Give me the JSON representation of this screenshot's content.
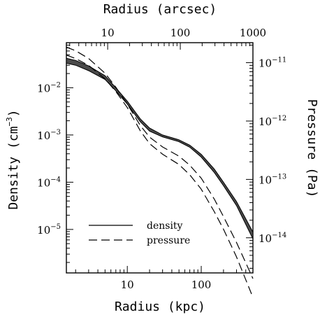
{
  "chart_data": {
    "type": "line",
    "title": "",
    "x_axis_bottom": {
      "label": "Radius (kpc)",
      "scale": "log",
      "range": [
        1.5,
        500
      ],
      "ticks": [
        {
          "value": 10,
          "label": "10"
        },
        {
          "value": 100,
          "label": "100"
        }
      ]
    },
    "x_axis_top": {
      "label": "Radius (arcsec)",
      "scale": "log",
      "range": [
        2.7,
        1000
      ],
      "ticks": [
        {
          "value": 10,
          "label": "10"
        },
        {
          "value": 100,
          "label": "100"
        },
        {
          "value": 1000,
          "label": "1000"
        }
      ]
    },
    "y_axis_left": {
      "label_main": "Density (cm",
      "label_sup": "−3",
      "label_end": ")",
      "scale": "log",
      "range": [
        1.2e-06,
        0.09
      ],
      "ticks": [
        {
          "value": 0.01,
          "base": "10",
          "exp": "−2"
        },
        {
          "value": 0.001,
          "base": "10",
          "exp": "−3"
        },
        {
          "value": 0.0001,
          "base": "10",
          "exp": "−4"
        },
        {
          "value": 1e-05,
          "base": "10",
          "exp": "−5"
        }
      ]
    },
    "y_axis_right": {
      "label": "Pressure (Pa)",
      "scale": "log",
      "range": [
        2.5e-15,
        2.2e-11
      ],
      "ticks": [
        {
          "value": 1e-11,
          "base": "10",
          "exp": "−11"
        },
        {
          "value": 1e-12,
          "base": "10",
          "exp": "−12"
        },
        {
          "value": 1e-13,
          "base": "10",
          "exp": "−13"
        },
        {
          "value": 1e-14,
          "base": "10",
          "exp": "−14"
        }
      ]
    },
    "density_band": {
      "x": [
        1.5,
        2,
        3,
        5,
        7,
        10,
        15,
        20,
        30,
        50,
        70,
        100,
        150,
        200,
        300,
        500
      ],
      "upper": [
        0.042,
        0.038,
        0.029,
        0.018,
        0.01,
        0.0052,
        0.0022,
        0.0014,
        0.001,
        0.00079,
        0.00061,
        0.00039,
        0.00019,
        0.0001,
        3.9e-05,
        8.8e-06
      ],
      "lower": [
        0.033,
        0.03,
        0.023,
        0.015,
        0.0086,
        0.0045,
        0.0019,
        0.0012,
        0.00091,
        0.00072,
        0.00055,
        0.00034,
        0.00016,
        8.4e-05,
        3.2e-05,
        6.3e-06
      ]
    },
    "pressure_curves": [
      {
        "x": [
          1.5,
          2,
          3,
          5,
          7,
          10,
          15,
          20,
          30,
          50,
          70,
          100,
          150,
          200,
          300,
          500
        ],
        "y": [
          1.85e-11,
          1.6e-11,
          1.18e-11,
          6.6e-12,
          3.8e-12,
          1.95e-12,
          8.4e-13,
          5.3e-13,
          3.6e-13,
          2.5e-13,
          1.75e-13,
          1.05e-13,
          4.6e-14,
          2.3e-14,
          8.3e-15,
          2e-15
        ]
      },
      {
        "x": [
          1.5,
          2,
          3,
          5,
          7,
          10,
          15,
          20,
          30,
          50,
          70,
          100,
          150,
          200,
          300,
          500
        ],
        "y": [
          1.35e-11,
          1.18e-11,
          9e-12,
          5.3e-12,
          3.2e-12,
          1.7e-12,
          6.8e-13,
          4.1e-13,
          2.7e-13,
          1.8e-13,
          1.2e-13,
          6.8e-14,
          2.8e-14,
          1.4e-14,
          4.7e-15,
          9.5e-16
        ]
      }
    ],
    "legend": {
      "placement": "bottom-left",
      "entries": [
        {
          "label": "density",
          "style": "solid"
        },
        {
          "label": "pressure",
          "style": "dashed"
        }
      ]
    },
    "grid": false
  }
}
